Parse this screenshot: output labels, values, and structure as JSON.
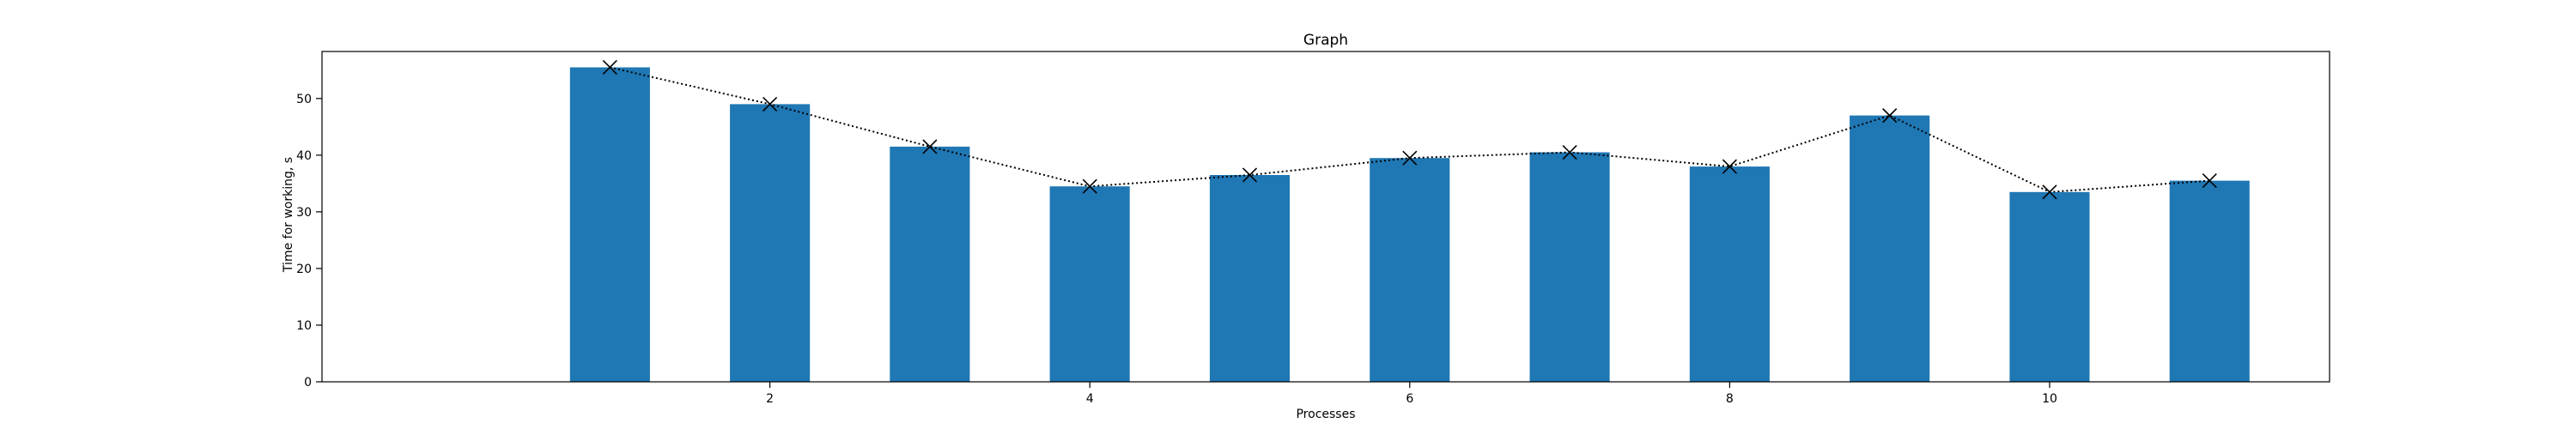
{
  "chart_data": {
    "type": "bar",
    "title": "Graph",
    "xlabel": "Processes",
    "ylabel": "Time for working, s",
    "x": [
      1,
      2,
      3,
      4,
      5,
      6,
      7,
      8,
      9,
      10,
      11
    ],
    "values": [
      55.5,
      49.0,
      41.5,
      34.5,
      36.5,
      39.5,
      40.5,
      38.0,
      47.0,
      33.5,
      35.5
    ],
    "line_overlay": {
      "style": "dotted",
      "marker": "x",
      "values": [
        55.5,
        49.0,
        41.5,
        34.5,
        36.5,
        39.5,
        40.5,
        38.0,
        47.0,
        33.5,
        35.5
      ]
    },
    "xlim": [
      -0.8,
      11.75
    ],
    "ylim": [
      0,
      58.3
    ],
    "xticks": [
      2,
      4,
      6,
      8,
      10
    ],
    "yticks": [
      0,
      10,
      20,
      30,
      40,
      50
    ],
    "grid": false,
    "bar_color": "#1f77b4",
    "line_color": "#000000"
  }
}
